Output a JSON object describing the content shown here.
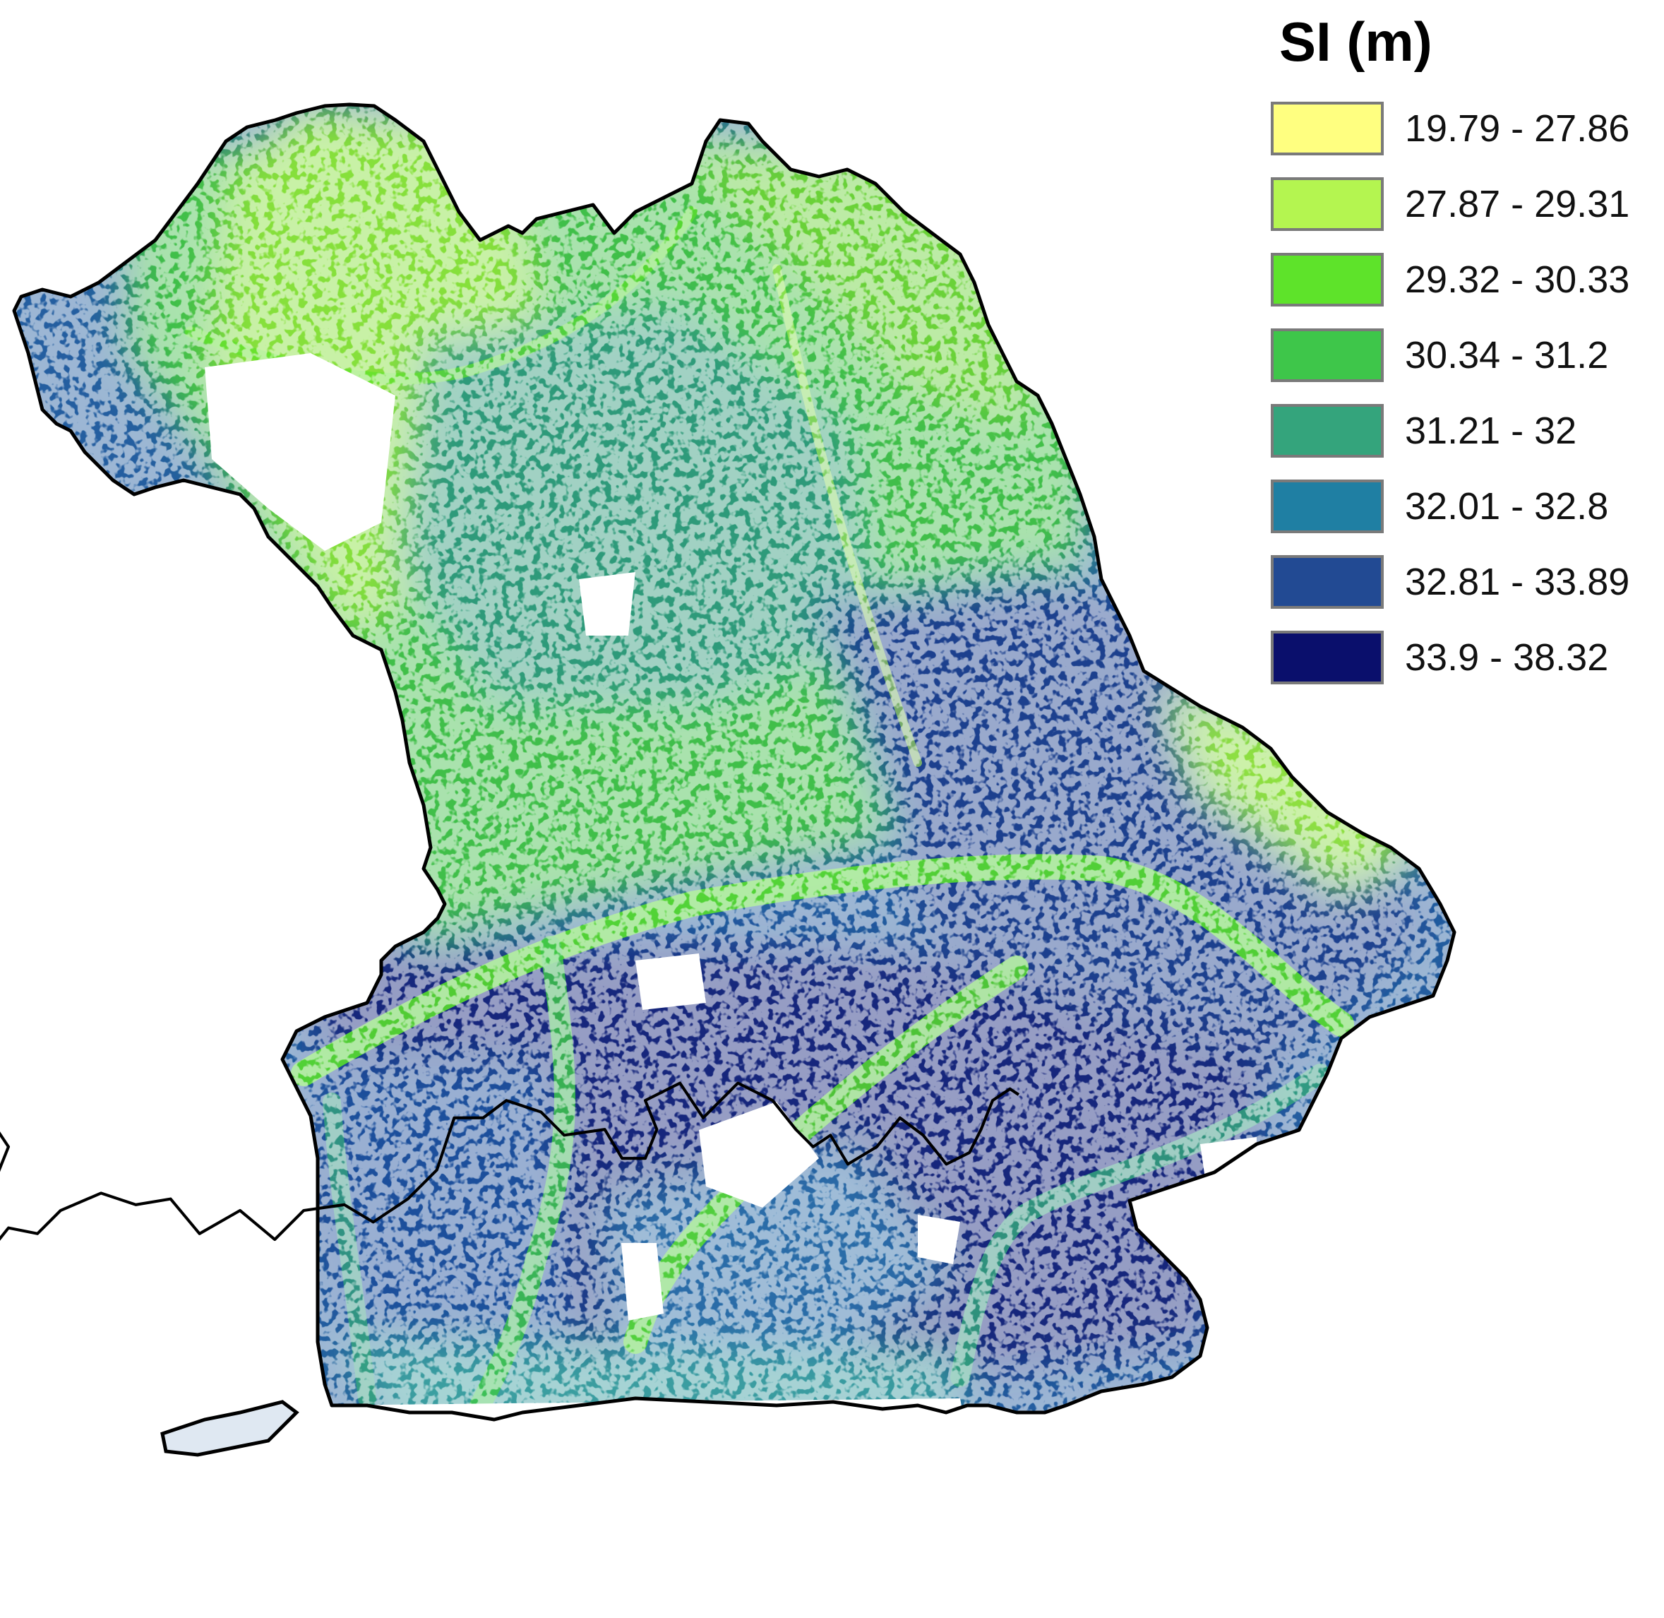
{
  "legend": {
    "title": "SI (m)",
    "classes": [
      {
        "label": "19.79 - 27.86",
        "color": "#ffff80"
      },
      {
        "label": "27.87 - 29.31",
        "color": "#b4f550"
      },
      {
        "label": "29.32 - 30.33",
        "color": "#5ee32a"
      },
      {
        "label": "30.34 - 31.2",
        "color": "#3ec64a"
      },
      {
        "label": "31.21 - 32",
        "color": "#34a47c"
      },
      {
        "label": "32.01 - 32.8",
        "color": "#1f7fa3"
      },
      {
        "label": "32.81 - 33.89",
        "color": "#224a93"
      },
      {
        "label": "33.9 - 38.32",
        "color": "#0a0f6c"
      }
    ]
  },
  "map": {
    "outline_color": "#000000",
    "nodata_color": "#ffffff"
  }
}
